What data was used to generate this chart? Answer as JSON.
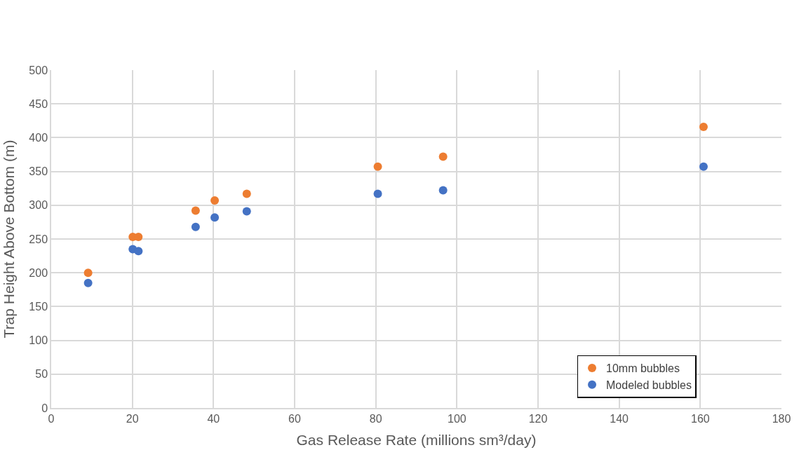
{
  "chart_data": {
    "type": "scatter",
    "xlabel": "Gas Release Rate (millions sm³/day)",
    "ylabel": "Trap Height Above Bottom (m)",
    "x": [
      9.1,
      20.1,
      21.5,
      35.6,
      40.3,
      48.2,
      80.5,
      96.6,
      160.8
    ],
    "series": [
      {
        "name": "10mm bubbles",
        "color": "#ed7d31",
        "values": [
          200,
          253,
          253,
          292,
          307,
          317,
          357,
          372,
          416
        ]
      },
      {
        "name": "Modeled bubbles",
        "color": "#4472c4",
        "values": [
          185,
          235,
          232,
          268,
          282,
          291,
          317,
          322,
          357
        ]
      }
    ],
    "xlim": [
      0,
      180
    ],
    "xticks": [
      0,
      20,
      40,
      60,
      80,
      100,
      120,
      140,
      160,
      180
    ],
    "ylim": [
      0,
      500
    ],
    "yticks": [
      0,
      50,
      100,
      150,
      200,
      250,
      300,
      350,
      400,
      450,
      500
    ],
    "grid": true,
    "legend": "bottom right",
    "marker": "circle"
  }
}
